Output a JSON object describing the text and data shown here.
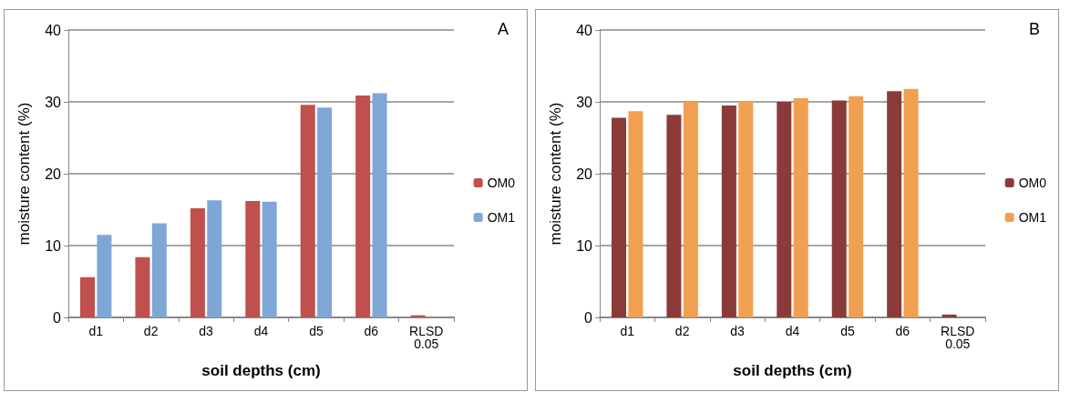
{
  "chart_data": [
    {
      "type": "bar",
      "xlabel": "soil depths (cm)",
      "ylabel": "moisture content (%)",
      "annotations": [
        "A"
      ],
      "categories": [
        "d1",
        "d2",
        "d3",
        "d4",
        "d5",
        "d6",
        "RLSD\n0.05"
      ],
      "series": [
        {
          "name": "OM0",
          "color": "#c0504d",
          "values": [
            5.6,
            8.4,
            15.2,
            16.2,
            29.6,
            30.9,
            0.3
          ]
        },
        {
          "name": "OM1",
          "color": "#7fa7d6",
          "values": [
            11.5,
            13.1,
            16.3,
            16.1,
            29.2,
            31.2,
            null
          ]
        }
      ],
      "ylim": [
        0,
        40
      ],
      "yticks": [
        0,
        10,
        20,
        30,
        40
      ],
      "grid": "y",
      "legend": "right"
    },
    {
      "type": "bar",
      "xlabel": "soil depths (cm)",
      "ylabel": "moisture content (%)",
      "annotations": [
        "B"
      ],
      "categories": [
        "d1",
        "d2",
        "d3",
        "d4",
        "d5",
        "d6",
        "RLSD\n0.05"
      ],
      "series": [
        {
          "name": "OM0",
          "color": "#8b3a3a",
          "values": [
            27.8,
            28.2,
            29.5,
            30.0,
            30.2,
            31.5,
            0.4
          ]
        },
        {
          "name": "OM1",
          "color": "#f0a050",
          "values": [
            28.7,
            30.0,
            30.1,
            30.5,
            30.8,
            31.8,
            null
          ]
        }
      ],
      "ylim": [
        0,
        40
      ],
      "yticks": [
        0,
        10,
        20,
        30,
        40
      ],
      "grid": "y",
      "legend": "right"
    }
  ]
}
